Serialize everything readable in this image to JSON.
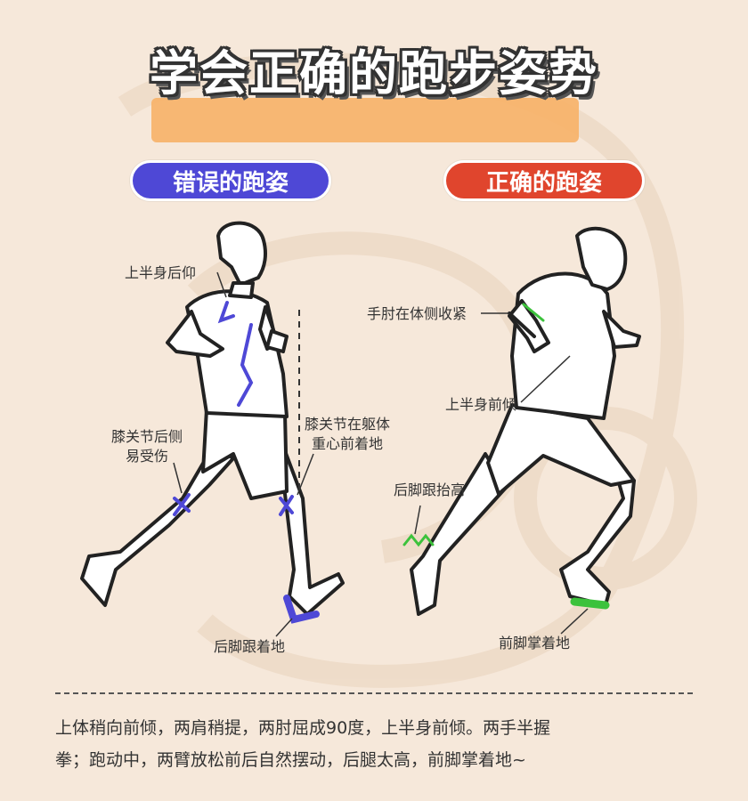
{
  "title": "学会正确的跑步姿势",
  "wrong": {
    "badge": "错误的跑姿",
    "labels": {
      "upper_body": "上半身后仰",
      "knee_behind_1": "膝关节后侧",
      "knee_behind_2": "易受伤",
      "knee_front_1": "膝关节在躯体",
      "knee_front_2": "重心前着地",
      "heel": "后脚跟着地"
    }
  },
  "right": {
    "badge": "正确的跑姿",
    "labels": {
      "elbow": "手肘在体侧收紧",
      "upper_body": "上半身前倾",
      "heel_raise": "后脚跟抬高",
      "forefoot": "前脚掌着地"
    }
  },
  "description_line1": "上体稍向前倾，两肩稍提，两肘屈成90度，上半身前倾。两手半握",
  "description_line2": "拳；跑动中，两臂放松前后自然摆动，后腿太高，前脚掌着地~",
  "colors": {
    "wrong_accent": "#4e48d6",
    "right_accent": "#e0452d",
    "highlight": "#f7b167",
    "correct_marker": "#3cc23c"
  }
}
